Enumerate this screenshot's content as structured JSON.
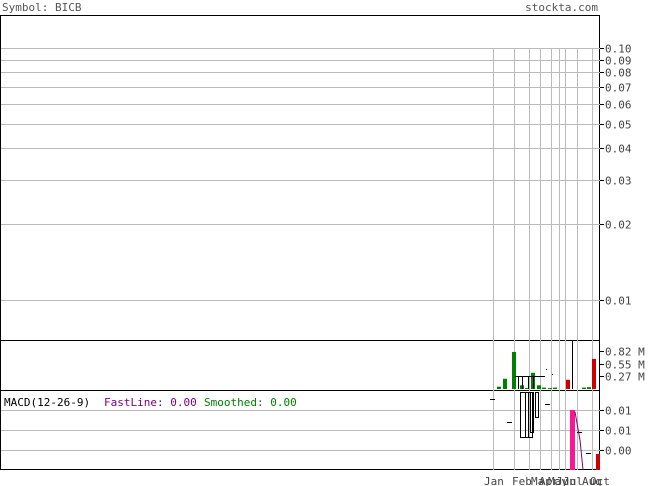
{
  "header": {
    "symbol_text": "Symbol: BICB",
    "site_text": "stockta.com"
  },
  "chart_data": [
    {
      "type": "line",
      "panel": "price",
      "y_scale": "log",
      "ylim": [
        0.008,
        0.1
      ],
      "y_ticks": [
        {
          "value": 0.1,
          "label": "0.10"
        },
        {
          "value": 0.09,
          "label": "0.09"
        },
        {
          "value": 0.08,
          "label": "0.08"
        },
        {
          "value": 0.07,
          "label": "0.07"
        },
        {
          "value": 0.06,
          "label": "0.06"
        },
        {
          "value": 0.05,
          "label": "0.05"
        },
        {
          "value": 0.04,
          "label": "0.04"
        },
        {
          "value": 0.03,
          "label": "0.03"
        },
        {
          "value": 0.02,
          "label": "0.02"
        },
        {
          "value": 0.01,
          "label": "0.01"
        }
      ],
      "x_labels": [
        "Jan",
        "Feb",
        "Mar",
        "Apr",
        "May",
        "Jun",
        "Jul",
        "Aug",
        "Oct"
      ],
      "grid": true
    },
    {
      "type": "bar",
      "panel": "volume",
      "y_ticks": [
        {
          "value": 0.82,
          "label": "0.82 M"
        },
        {
          "value": 0.55,
          "label": "0.55 M"
        },
        {
          "value": 0.27,
          "label": "0.27 M"
        }
      ],
      "ylim": [
        0,
        0.95
      ],
      "values": [
        0.05,
        0.22,
        0.8,
        0.08,
        0.02,
        0.35,
        0.08,
        0.03,
        0.02,
        0.03,
        0.2,
        0.03,
        0.04,
        0.65
      ],
      "colors": [
        "#008000",
        "#008000",
        "#008000",
        "#008000",
        "#008000",
        "#008000",
        "#008000",
        "#008000",
        "#008000",
        "#008000",
        "#cc0000",
        "#008000",
        "#008000",
        "#cc0000"
      ]
    },
    {
      "type": "bar",
      "panel": "macd",
      "title": "MACD(12-26-9)",
      "fastline_label": "FastLine: 0.00",
      "smoothed_label": "Smoothed: 0.00",
      "y_ticks": [
        {
          "value": 0.01,
          "label": "0.01"
        },
        {
          "value": 0.005,
          "label": "0.01"
        },
        {
          "value": 0.0,
          "label": "0.00"
        }
      ],
      "colors": {
        "fast": "#800080",
        "smoothed": "#008000",
        "hist_neg": "#ff1493",
        "hist_pos": "#cc0000"
      }
    }
  ]
}
